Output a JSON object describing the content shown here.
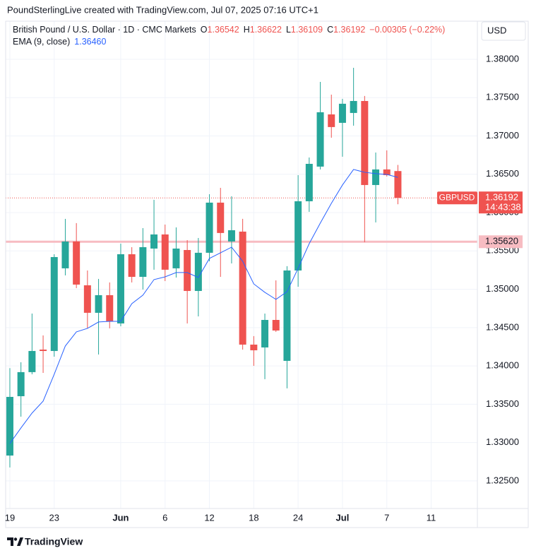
{
  "header": "PoundSterlingLive created with TradingView.com, Jul 07, 2025 07:16 UTC+1",
  "chart_data": {
    "type": "candlestick",
    "symbol_title": "British Pound / U.S. Dollar · 1D · CMC Markets",
    "ohlc_legend": [
      {
        "key": "O",
        "value": "1.36542"
      },
      {
        "key": "H",
        "value": "1.36622"
      },
      {
        "key": "L",
        "value": "1.36109"
      },
      {
        "key": "C",
        "value": "1.36192"
      }
    ],
    "change": "−0.00305 (−0.22%)",
    "currency": "USD",
    "up_color": "#26a69a",
    "down_color": "#ef5350",
    "open": [
      1.32831,
      1.33605,
      1.33919,
      1.34213,
      1.34195,
      1.35273,
      1.35623,
      1.35052,
      1.34693,
      1.34923,
      1.34554,
      1.35457,
      1.35162,
      1.35531,
      1.35715,
      1.35273,
      1.35512,
      1.34978,
      1.35476,
      1.3613,
      1.35623,
      1.35752,
      1.34278,
      1.34241,
      1.346,
      1.34066,
      1.35245,
      1.36148,
      1.366,
      1.37281,
      1.37171,
      1.373,
      1.37456,
      1.3636,
      1.36563,
      1.36542
    ],
    "high": [
      1.33971,
      1.34048,
      1.34683,
      1.34398,
      1.35457,
      1.35918,
      1.35863,
      1.35245,
      1.35135,
      1.35089,
      1.35595,
      1.35549,
      1.35798,
      1.36167,
      1.35844,
      1.35807,
      1.35641,
      1.35669,
      1.3624,
      1.36323,
      1.36213,
      1.35918,
      1.34389,
      1.34683,
      1.35116,
      1.35301,
      1.36489,
      1.36719,
      1.37705,
      1.37539,
      1.37484,
      1.37889,
      1.37521,
      1.36784,
      1.36812,
      1.36622
    ],
    "low": [
      1.32675,
      1.33338,
      1.33891,
      1.33909,
      1.34121,
      1.35181,
      1.35015,
      1.3449,
      1.34149,
      1.3449,
      1.34517,
      1.35089,
      1.34997,
      1.35255,
      1.35107,
      1.35153,
      1.34554,
      1.34646,
      1.35365,
      1.35162,
      1.35337,
      1.34213,
      1.34001,
      1.33827,
      1.34444,
      1.33707,
      1.35033,
      1.3601,
      1.36563,
      1.36977,
      1.36729,
      1.37134,
      1.35614,
      1.35872,
      1.36471,
      1.36109
    ],
    "close": [
      1.33596,
      1.33919,
      1.34195,
      1.34195,
      1.3542,
      1.35623,
      1.35061,
      1.34693,
      1.34923,
      1.34582,
      1.35457,
      1.35162,
      1.35549,
      1.35715,
      1.35255,
      1.35531,
      1.34978,
      1.35476,
      1.3613,
      1.35734,
      1.3577,
      1.34278,
      1.34204,
      1.346,
      1.34462,
      1.35245,
      1.36148,
      1.36636,
      1.37309,
      1.37116,
      1.3742,
      1.37456,
      1.3636,
      1.36563,
      1.36489,
      1.36192
    ],
    "indicator": {
      "name": "EMA (9, close)",
      "color": "#2962ff",
      "last_label": "1.36460",
      "values": [
        1.32988,
        1.33191,
        1.33385,
        1.33541,
        1.33891,
        1.3426,
        1.34444,
        1.3449,
        1.34573,
        1.34582,
        1.34582,
        1.34812,
        1.34923,
        1.35126,
        1.35162,
        1.35218,
        1.35218,
        1.35153,
        1.35402,
        1.35476,
        1.35549,
        1.35365,
        1.3507,
        1.3496,
        1.34868,
        1.34969,
        1.35273,
        1.35595,
        1.35863,
        1.36121,
        1.3636,
        1.36563,
        1.36526,
        1.36508,
        1.36498,
        1.3646
      ]
    },
    "last_price": {
      "symbol": "GBPUSD",
      "value": 1.36192,
      "label": "1.36192",
      "countdown": "14:43:38"
    },
    "hline": {
      "value": 1.3562,
      "label": "1.35620",
      "color": "#f7bcc2"
    },
    "xlim": [
      -0.38,
      42.17
    ],
    "xticks": [
      {
        "value": 0,
        "label": "19"
      },
      {
        "value": 4,
        "label": "23"
      },
      {
        "value": 10,
        "label": "Jun"
      },
      {
        "value": 14,
        "label": "6"
      },
      {
        "value": 18,
        "label": "12"
      },
      {
        "value": 22,
        "label": "18"
      },
      {
        "value": 26,
        "label": "24"
      },
      {
        "value": 30,
        "label": "Jul"
      },
      {
        "value": 34,
        "label": "7"
      },
      {
        "value": 38,
        "label": "11"
      }
    ],
    "ylim": [
      1.3214,
      1.38497
    ],
    "yticks": [
      {
        "value": 1.325,
        "label": "1.32500"
      },
      {
        "value": 1.33,
        "label": "1.33000"
      },
      {
        "value": 1.335,
        "label": "1.33500"
      },
      {
        "value": 1.34,
        "label": "1.34000"
      },
      {
        "value": 1.345,
        "label": "1.34500"
      },
      {
        "value": 1.35,
        "label": "1.35000"
      },
      {
        "value": 1.355,
        "label": "1.35500"
      },
      {
        "value": 1.36,
        "label": "1.36000"
      },
      {
        "value": 1.365,
        "label": "1.36500"
      },
      {
        "value": 1.37,
        "label": "1.37000"
      },
      {
        "value": 1.375,
        "label": "1.37500"
      },
      {
        "value": 1.38,
        "label": "1.38000"
      }
    ],
    "grid": true
  },
  "footer": "TradingView"
}
